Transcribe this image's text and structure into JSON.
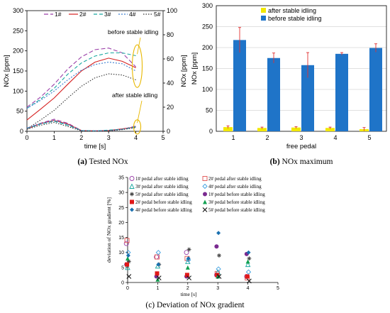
{
  "captions": {
    "a_letter": "(a)",
    "a_text": "Tested NOx",
    "b_letter": "(b)",
    "b_text": "NOx maximum",
    "c_text": "(c) Deviation of NOx gradient"
  },
  "chart_data": [
    {
      "type": "line",
      "xlabel": "time [s]",
      "ylabel": "NOx [ppm]",
      "ylabel_right": "NOx [ppm]",
      "xlim": [
        0,
        5
      ],
      "ylim": [
        0,
        300
      ],
      "ylim_right": [
        0,
        100
      ],
      "xticks": [
        0,
        1,
        2,
        3,
        4,
        5
      ],
      "yticks": [
        0,
        50,
        100,
        150,
        200,
        250,
        300
      ],
      "yticks_right": [
        0,
        20,
        40,
        60,
        80,
        100
      ],
      "grid": false,
      "legend_position": "top",
      "annotations": [
        "before stable idling",
        "after stable idling"
      ],
      "series_style": [
        {
          "name": "1#",
          "color": "#9b3fa8",
          "dash": "6,3"
        },
        {
          "name": "2#",
          "color": "#d62020",
          "dash": ""
        },
        {
          "name": "3#",
          "color": "#18a8a0",
          "dash": "5,3"
        },
        {
          "name": "4#",
          "color": "#3d7fd0",
          "dash": "2,2"
        },
        {
          "name": "5#",
          "color": "#333333",
          "dash": "1.5,2"
        }
      ],
      "series": [
        {
          "name": "1#",
          "group": "before",
          "x": [
            0,
            0.5,
            1,
            1.5,
            2,
            2.5,
            3,
            3.5,
            4
          ],
          "y": [
            60,
            85,
            117,
            155,
            185,
            203,
            207,
            195,
            160
          ]
        },
        {
          "name": "2#",
          "group": "before",
          "x": [
            0,
            0.5,
            1,
            1.5,
            2,
            2.5,
            3,
            3.5,
            4
          ],
          "y": [
            28,
            55,
            83,
            117,
            150,
            172,
            182,
            174,
            158
          ]
        },
        {
          "name": "3#",
          "group": "before",
          "x": [
            0,
            0.5,
            1,
            1.5,
            2,
            2.5,
            3,
            3.5,
            4
          ],
          "y": [
            57,
            80,
            107,
            142,
            170,
            187,
            195,
            195,
            188
          ]
        },
        {
          "name": "4#",
          "group": "before",
          "x": [
            0,
            0.5,
            1,
            1.5,
            2,
            2.5,
            3,
            3.5,
            4
          ],
          "y": [
            57,
            77,
            100,
            128,
            152,
            166,
            172,
            168,
            150
          ]
        },
        {
          "name": "5#",
          "group": "before",
          "x": [
            0,
            0.5,
            1,
            1.5,
            2,
            2.5,
            3,
            3.5,
            4
          ],
          "y": [
            6,
            28,
            52,
            83,
            112,
            133,
            143,
            140,
            128
          ]
        },
        {
          "name": "1#",
          "group": "after",
          "x": [
            0,
            0.5,
            1,
            1.5,
            2,
            2.5,
            3,
            3.5,
            4
          ],
          "y": [
            8,
            20,
            30,
            20,
            2,
            1,
            2,
            5,
            13
          ]
        },
        {
          "name": "2#",
          "group": "after",
          "x": [
            0,
            0.5,
            1,
            1.5,
            2,
            2.5,
            3,
            3.5,
            4
          ],
          "y": [
            6,
            19,
            27,
            18,
            2,
            1,
            2,
            6,
            11
          ]
        },
        {
          "name": "3#",
          "group": "after",
          "x": [
            0,
            0.5,
            1,
            1.5,
            2,
            2.5,
            3,
            3.5,
            4
          ],
          "y": [
            7,
            18,
            25,
            15,
            2,
            1,
            3,
            5,
            10
          ]
        },
        {
          "name": "4#",
          "group": "after",
          "x": [
            0,
            0.5,
            1,
            1.5,
            2,
            2.5,
            3,
            3.5,
            4
          ],
          "y": [
            8,
            19,
            27,
            17,
            2,
            1,
            2,
            5,
            12
          ]
        },
        {
          "name": "5#",
          "group": "after",
          "x": [
            0,
            0.5,
            1,
            1.5,
            2,
            2.5,
            3,
            3.5,
            4
          ],
          "y": [
            5,
            15,
            22,
            12,
            1,
            0,
            1,
            4,
            9
          ]
        }
      ]
    },
    {
      "type": "bar",
      "xlabel": "free pedal",
      "ylabel": "NOx [ppm]",
      "categories": [
        "1",
        "2",
        "3",
        "4",
        "5"
      ],
      "ylim": [
        0,
        300
      ],
      "yticks": [
        0,
        50,
        100,
        150,
        200,
        250,
        300
      ],
      "grid": true,
      "legend_position": "top",
      "series": [
        {
          "name": "after stable idling",
          "color": "#f2e800",
          "values": [
            10,
            8,
            9,
            8,
            5
          ],
          "errors": [
            3,
            2,
            2,
            2,
            4
          ]
        },
        {
          "name": "before stable idling",
          "color": "#1f74c8",
          "values": [
            218,
            175,
            158,
            185,
            199
          ],
          "errors": [
            30,
            12,
            30,
            3,
            10
          ]
        }
      ],
      "error_color": "#e03030"
    },
    {
      "type": "scatter",
      "xlabel": "time [s]",
      "ylabel": "deviation of NOx gradient [%]",
      "xlim": [
        0,
        5
      ],
      "ylim": [
        0,
        35
      ],
      "xticks": [
        0,
        1,
        2,
        3,
        4,
        5
      ],
      "yticks": [
        0,
        5,
        10,
        15,
        20,
        25,
        30,
        35
      ],
      "grid": false,
      "legend_position": "top",
      "series": [
        {
          "name": "1# pedal after stable idling",
          "marker": "circle-open",
          "color": "#9b3fa8",
          "x": [
            0,
            1,
            2,
            3,
            4
          ],
          "y": [
            13,
            8.5,
            10,
            2.5,
            2
          ]
        },
        {
          "name": "2# pedal after stable idling",
          "marker": "square-open",
          "color": "#e05050",
          "x": [
            0,
            1,
            2,
            3,
            4
          ],
          "y": [
            14,
            8.5,
            8,
            3,
            1.5
          ]
        },
        {
          "name": "3# pedal after stable idling",
          "marker": "triangle-open",
          "color": "#18a8a0",
          "x": [
            0,
            1,
            2,
            3,
            4
          ],
          "y": [
            5,
            5.5,
            7,
            3.5,
            6
          ]
        },
        {
          "name": "4# pedal after stable idling",
          "marker": "diamond-open",
          "color": "#3d9fe0",
          "x": [
            0,
            1,
            2,
            3,
            4
          ],
          "y": [
            10,
            10,
            7.5,
            4.5,
            3.5
          ]
        },
        {
          "name": "5# pedal after stable idling",
          "marker": "star",
          "color": "#444444",
          "x": [
            0,
            1,
            2,
            3,
            4
          ],
          "y": [
            7,
            6,
            11,
            9,
            8
          ]
        },
        {
          "name": "1# pedal before stable idling",
          "marker": "circle",
          "color": "#7a2a90",
          "x": [
            0,
            1,
            2,
            3,
            4
          ],
          "y": [
            6,
            2,
            2,
            12,
            9.5
          ]
        },
        {
          "name": "2# pedal before stable idling",
          "marker": "square",
          "color": "#e01818",
          "x": [
            0,
            1,
            2,
            3,
            4
          ],
          "y": [
            6,
            3,
            2.5,
            2.5,
            2
          ]
        },
        {
          "name": "3# pedal before stable idling",
          "marker": "triangle",
          "color": "#10a050",
          "x": [
            0,
            1,
            2,
            3,
            4
          ],
          "y": [
            8,
            1,
            5,
            2,
            7
          ]
        },
        {
          "name": "4# pedal before stable idling",
          "marker": "diamond",
          "color": "#1a70b0",
          "x": [
            0,
            1,
            2,
            3,
            4
          ],
          "y": [
            9,
            6,
            8,
            16.5,
            10
          ]
        },
        {
          "name": "5# pedal before stable idling",
          "marker": "x",
          "color": "#111111",
          "x": [
            0,
            1,
            2,
            3,
            4
          ],
          "y": [
            2,
            1.5,
            1.5,
            2,
            0.5
          ]
        }
      ]
    }
  ]
}
